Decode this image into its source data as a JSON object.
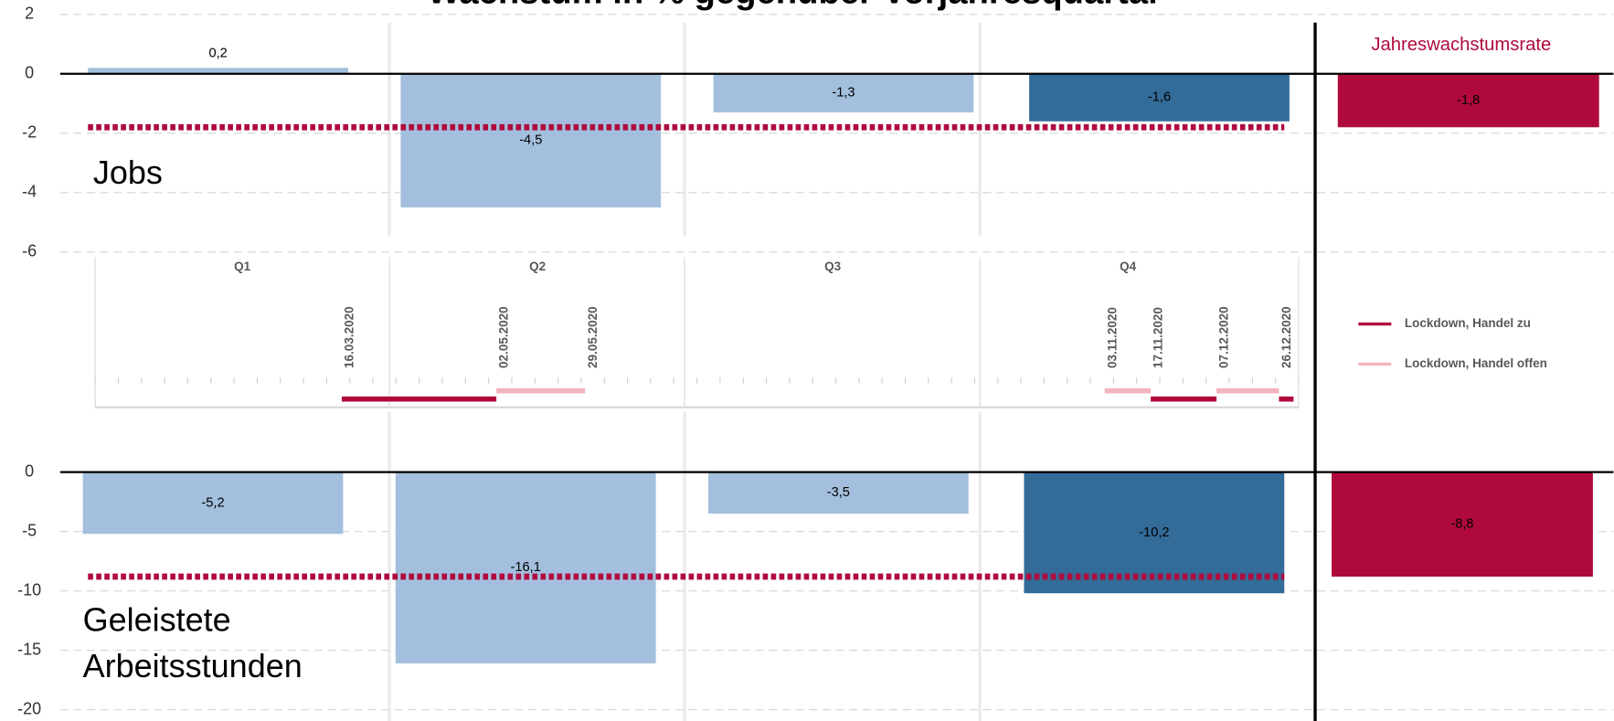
{
  "title": "Wachstum in % gegenüber Vorjahresquartal",
  "chart_data": [
    {
      "type": "bar",
      "label": [
        "Jobs"
      ],
      "annual_label": "Jahreswachstumsrate",
      "categories": [
        "Q1",
        "Q2",
        "Q3",
        "Q4"
      ],
      "values": [
        0.2,
        -4.5,
        -1.3,
        -1.6
      ],
      "value_labels": [
        "0,2",
        "-4,5",
        "-1,3",
        "-1,6"
      ],
      "colors": [
        "#a3bfdd",
        "#a3bfdd",
        "#a3bfdd",
        "#336b99"
      ],
      "annual": {
        "value": -1.8,
        "value_label": "-1,8",
        "color": "#b00a3c"
      },
      "ylim": [
        -6,
        2
      ],
      "yticks": [
        -6,
        -4,
        -2,
        0,
        2
      ],
      "grid": true
    },
    {
      "type": "bar",
      "label": [
        "Geleistete",
        "Arbeitsstunden"
      ],
      "categories": [
        "Q1",
        "Q2",
        "Q3",
        "Q4"
      ],
      "values": [
        -5.2,
        -16.1,
        -3.5,
        -10.2
      ],
      "value_labels": [
        "-5,2",
        "-16,1",
        "-3,5",
        "-10,2"
      ],
      "colors": [
        "#a3bfdd",
        "#a3bfdd",
        "#a3bfdd",
        "#336b99"
      ],
      "annual": {
        "value": -8.8,
        "value_label": "-8,8",
        "color": "#b00a3c"
      },
      "ylim": [
        -20,
        0
      ],
      "yticks": [
        -20,
        -15,
        -10,
        -5,
        0
      ],
      "grid": true
    }
  ],
  "timeline": {
    "quarters": [
      "Q1",
      "Q2",
      "Q3",
      "Q4"
    ],
    "dates": [
      "16.03.2020",
      "02.05.2020",
      "29.05.2020",
      "03.11.2020",
      "17.11.2020",
      "07.12.2020",
      "26.12.2020"
    ],
    "legend": [
      {
        "name": "Lockdown, Handel zu",
        "color": "#b00a3c"
      },
      {
        "name": "Lockdown, Handel offen",
        "color": "#f2b4bc"
      }
    ],
    "periods": [
      {
        "start": "16.03.2020",
        "end": "02.05.2020",
        "kind": "Lockdown, Handel zu"
      },
      {
        "start": "02.05.2020",
        "end": "29.05.2020",
        "kind": "Lockdown, Handel offen"
      },
      {
        "start": "03.11.2020",
        "end": "17.11.2020",
        "kind": "Lockdown, Handel offen"
      },
      {
        "start": "17.11.2020",
        "end": "07.12.2020",
        "kind": "Lockdown, Handel zu"
      },
      {
        "start": "07.12.2020",
        "end": "26.12.2020",
        "kind": "Lockdown, Handel offen"
      },
      {
        "start": "26.12.2020",
        "kind": "Lockdown, Handel zu"
      }
    ]
  }
}
